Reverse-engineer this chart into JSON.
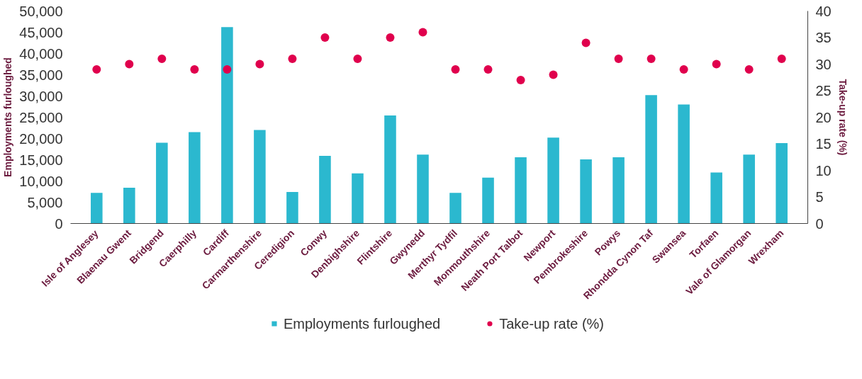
{
  "chart_data": {
    "type": "bar",
    "ylabel": "Employments furloughed",
    "y2label": "Take-up rate (%)",
    "categories": [
      "Isle of Anglesey",
      "Blaenau Gwent",
      "Bridgend",
      "Caerphilly",
      "Cardiff",
      "Carmarthenshire",
      "Ceredigion",
      "Conwy",
      "Denbighshire",
      "Flintshire",
      "Gwynedd",
      "Merthyr Tydfil",
      "Monmouthshire",
      "Neath Port Talbot",
      "Newport",
      "Pembrokeshire",
      "Powys",
      "Rhondda Cynon Taf",
      "Swansea",
      "Torfaen",
      "Vale of Glamorgan",
      "Wrexham"
    ],
    "series": [
      {
        "name": "Employments furloughed",
        "color": "#2bb8cf",
        "values": [
          7200,
          8400,
          19000,
          21500,
          46200,
          22000,
          7400,
          15900,
          11800,
          25400,
          16200,
          7200,
          10800,
          15600,
          20200,
          15100,
          15600,
          30200,
          28000,
          12000,
          16200,
          18900
        ]
      },
      {
        "name": "Take-up rate (%)",
        "type": "scatter",
        "axis": "y2",
        "color": "#e0004d",
        "marker": "circle",
        "values": [
          29,
          30,
          31,
          29,
          29,
          30,
          31,
          35,
          31,
          35,
          36,
          29,
          29,
          27,
          28,
          34,
          31,
          31,
          29,
          30,
          29,
          31
        ]
      }
    ],
    "ylim": [
      0,
      50000
    ],
    "yticks": [
      0,
      {
        "value": 5000,
        "label": "5,000"
      },
      {
        "value": 10000,
        "label": "10,000"
      },
      {
        "value": 15000,
        "label": "15,000"
      },
      {
        "value": 20000,
        "label": "20,000"
      },
      {
        "value": 25000,
        "label": "25,000"
      },
      {
        "value": 30000,
        "label": "30,000"
      },
      {
        "value": 35000,
        "label": "35,000"
      },
      {
        "value": 40000,
        "label": "40,000"
      },
      {
        "value": 45000,
        "label": "45,000"
      },
      {
        "value": 50000,
        "label": "50,000"
      }
    ],
    "y2lim": [
      0,
      40
    ],
    "y2ticks": [
      0,
      5,
      10,
      15,
      20,
      25,
      30,
      35,
      40
    ],
    "grid": false,
    "legend": "bottom"
  }
}
